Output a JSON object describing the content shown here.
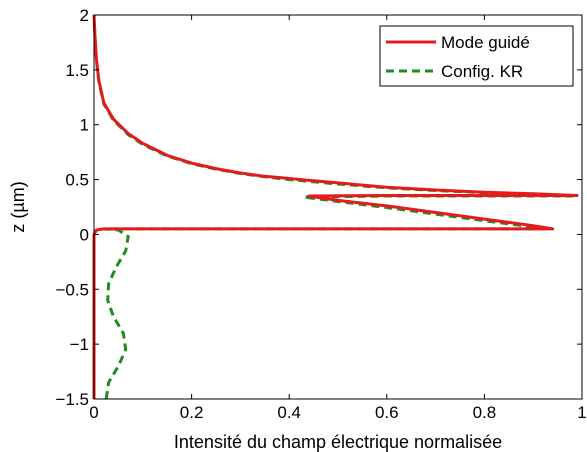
{
  "chart_data": {
    "type": "line",
    "xlabel": "Intensité du champ électrique normalisée",
    "ylabel": "z (µm)",
    "xlim": [
      0,
      1
    ],
    "ylim": [
      -1.5,
      2
    ],
    "xticks": [
      0,
      0.2,
      0.4,
      0.6,
      0.8,
      1
    ],
    "xtick_labels": [
      "0",
      "0.2",
      "0.4",
      "0.6",
      "0.8",
      "1"
    ],
    "yticks": [
      -1.5,
      -1,
      -0.5,
      0,
      0.5,
      1,
      1.5,
      2
    ],
    "ytick_labels": [
      "−1.5",
      "−1",
      "−0.5",
      "0",
      "0.5",
      "1",
      "1.5",
      "2"
    ],
    "grid": false,
    "legend_position": "top-right",
    "series": [
      {
        "name": "Mode guidé",
        "color": "#e41a1c",
        "style": "solid",
        "points": [
          [
            0.0,
            -1.5
          ],
          [
            0.0,
            -1.0
          ],
          [
            0.0,
            -0.5
          ],
          [
            0.0,
            0.0
          ],
          [
            0.005,
            0.04
          ],
          [
            0.02,
            0.05
          ],
          [
            0.3,
            0.05
          ],
          [
            0.6,
            0.05
          ],
          [
            0.85,
            0.05
          ],
          [
            0.94,
            0.05
          ],
          [
            0.9,
            0.08
          ],
          [
            0.8,
            0.14
          ],
          [
            0.7,
            0.2
          ],
          [
            0.6,
            0.26
          ],
          [
            0.5,
            0.31
          ],
          [
            0.44,
            0.35
          ],
          [
            0.6,
            0.355
          ],
          [
            0.8,
            0.355
          ],
          [
            0.9,
            0.355
          ],
          [
            0.99,
            0.355
          ],
          [
            0.9,
            0.37
          ],
          [
            0.8,
            0.385
          ],
          [
            0.7,
            0.405
          ],
          [
            0.6,
            0.43
          ],
          [
            0.5,
            0.47
          ],
          [
            0.45,
            0.49
          ],
          [
            0.4,
            0.51
          ],
          [
            0.35,
            0.53
          ],
          [
            0.3,
            0.56
          ],
          [
            0.25,
            0.6
          ],
          [
            0.2,
            0.65
          ],
          [
            0.15,
            0.72
          ],
          [
            0.1,
            0.83
          ],
          [
            0.07,
            0.92
          ],
          [
            0.04,
            1.05
          ],
          [
            0.02,
            1.2
          ],
          [
            0.01,
            1.4
          ],
          [
            0.005,
            1.6
          ],
          [
            0.002,
            1.8
          ],
          [
            0.0,
            2.0
          ]
        ]
      },
      {
        "name": "Config. KR",
        "color": "#1f8c1f",
        "style": "dashed",
        "points": [
          [
            0.025,
            -1.5
          ],
          [
            0.03,
            -1.35
          ],
          [
            0.05,
            -1.2
          ],
          [
            0.065,
            -1.05
          ],
          [
            0.06,
            -0.9
          ],
          [
            0.04,
            -0.75
          ],
          [
            0.028,
            -0.6
          ],
          [
            0.03,
            -0.45
          ],
          [
            0.045,
            -0.3
          ],
          [
            0.065,
            -0.15
          ],
          [
            0.07,
            -0.02
          ],
          [
            0.05,
            0.04
          ],
          [
            0.02,
            0.05
          ],
          [
            0.3,
            0.05
          ],
          [
            0.6,
            0.05
          ],
          [
            0.85,
            0.05
          ],
          [
            0.92,
            0.05
          ],
          [
            0.88,
            0.08
          ],
          [
            0.8,
            0.125
          ],
          [
            0.7,
            0.185
          ],
          [
            0.6,
            0.245
          ],
          [
            0.5,
            0.3
          ],
          [
            0.43,
            0.34
          ],
          [
            0.6,
            0.35
          ],
          [
            0.8,
            0.35
          ],
          [
            0.9,
            0.35
          ],
          [
            0.98,
            0.35
          ],
          [
            0.9,
            0.365
          ],
          [
            0.8,
            0.38
          ],
          [
            0.7,
            0.4
          ],
          [
            0.6,
            0.425
          ],
          [
            0.5,
            0.46
          ],
          [
            0.45,
            0.48
          ],
          [
            0.4,
            0.5
          ],
          [
            0.35,
            0.525
          ],
          [
            0.3,
            0.555
          ],
          [
            0.25,
            0.595
          ],
          [
            0.2,
            0.645
          ],
          [
            0.15,
            0.715
          ],
          [
            0.1,
            0.82
          ],
          [
            0.07,
            0.91
          ],
          [
            0.04,
            1.04
          ],
          [
            0.02,
            1.19
          ],
          [
            0.01,
            1.39
          ],
          [
            0.005,
            1.59
          ],
          [
            0.002,
            1.79
          ],
          [
            0.0,
            2.0
          ]
        ]
      }
    ]
  }
}
